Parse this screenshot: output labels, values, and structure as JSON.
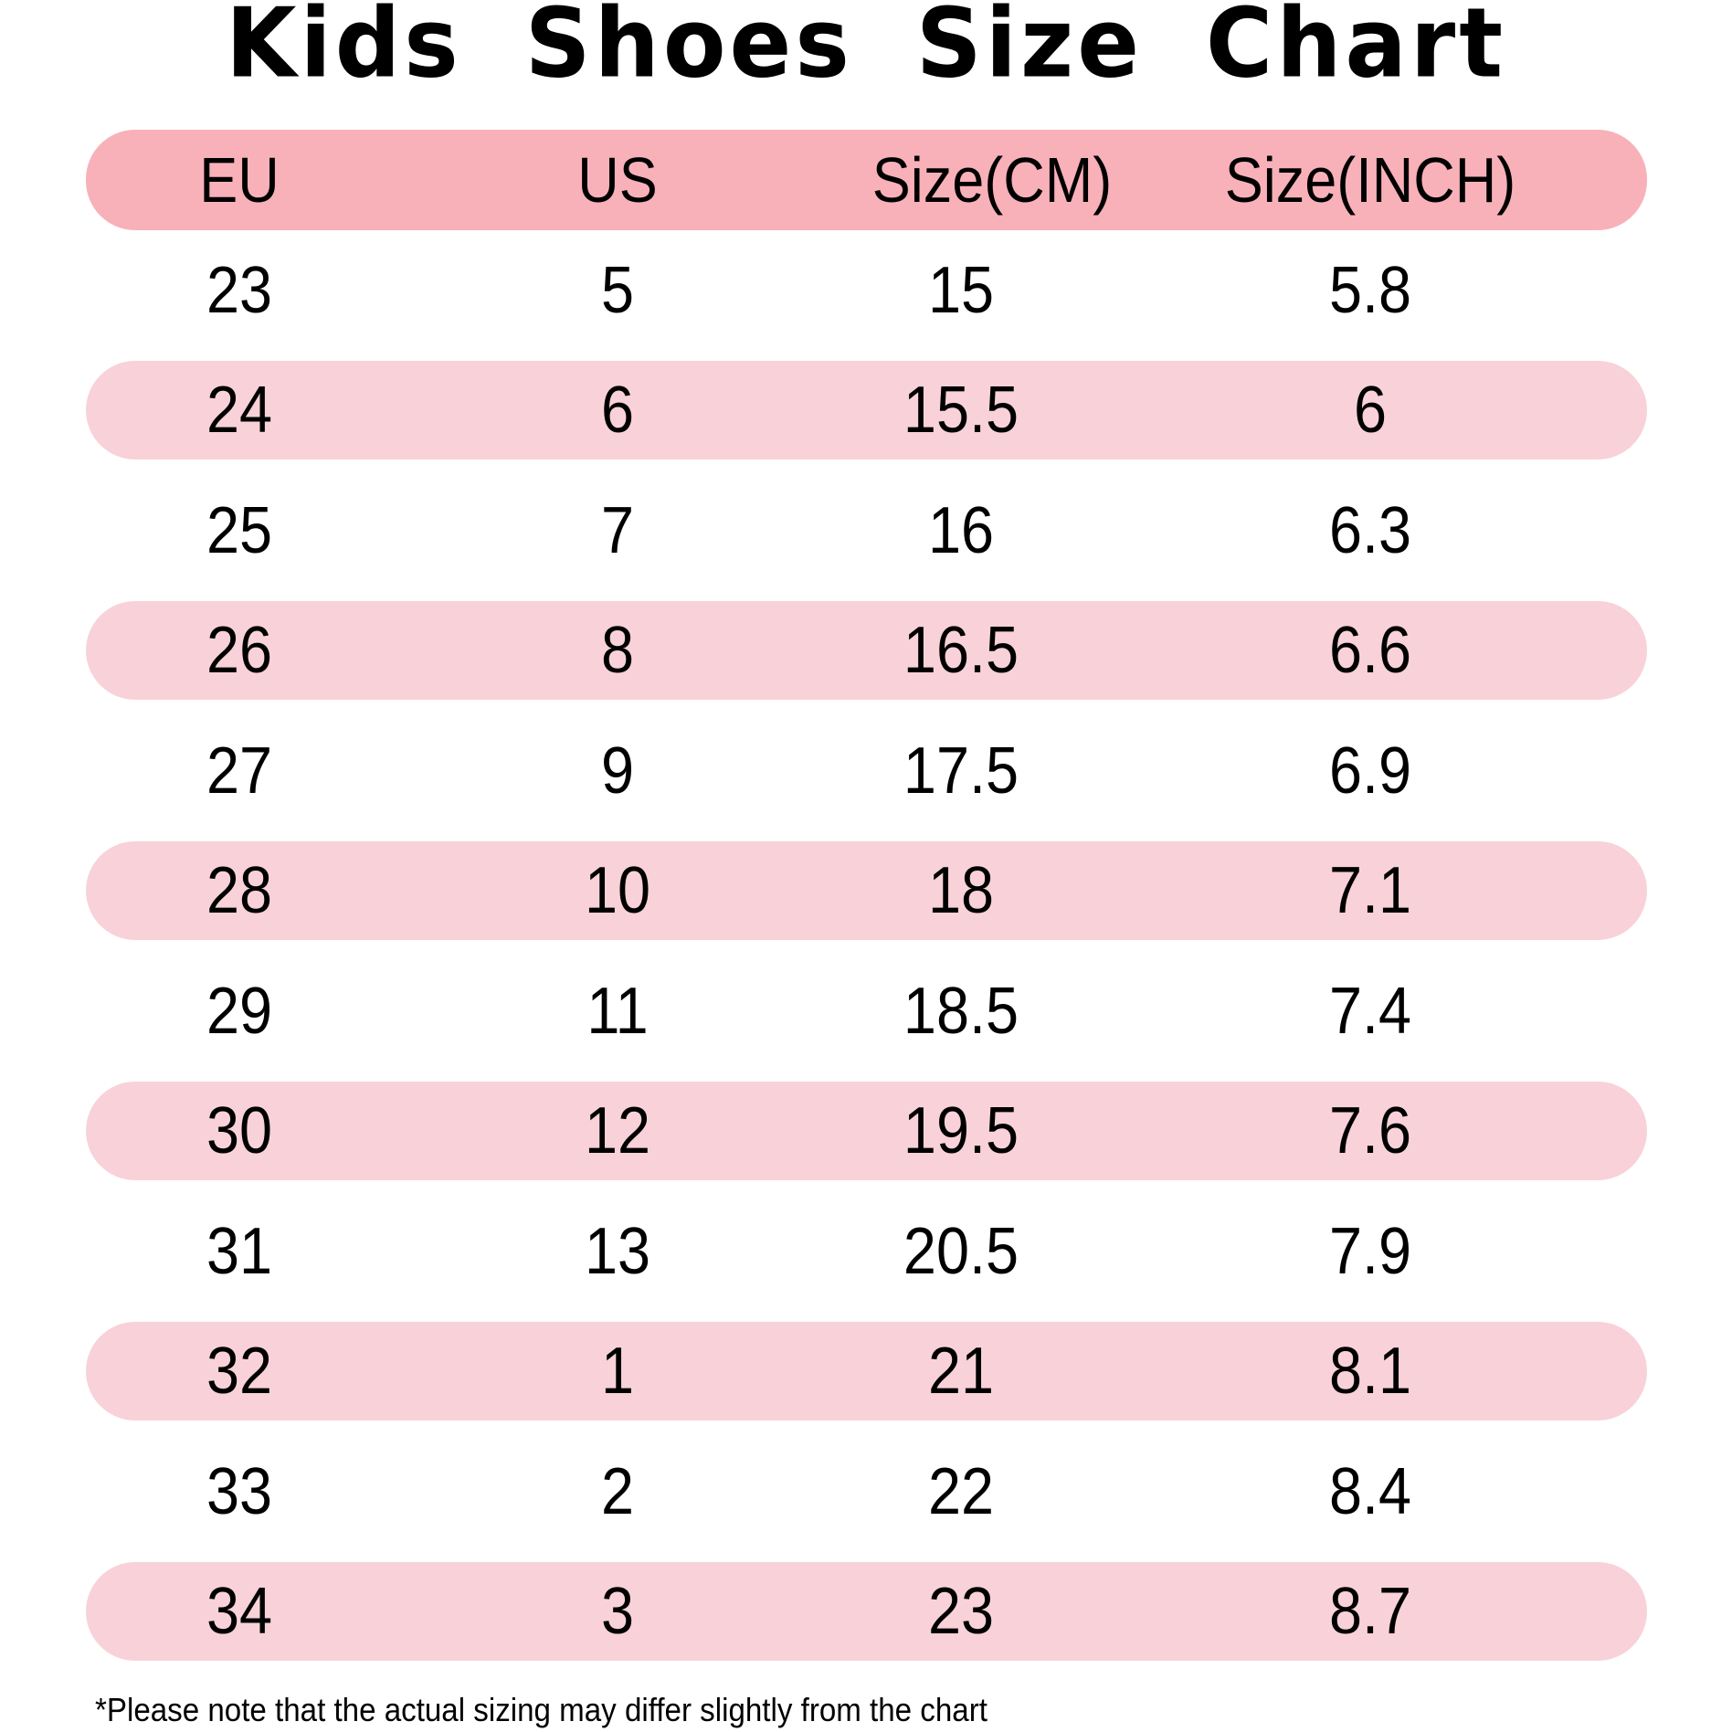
{
  "title": "Kids  Shoes  Size Chart",
  "columns": [
    "EU",
    "US",
    "Size(CM)",
    "Size(INCH)"
  ],
  "rows": [
    [
      "23",
      "5",
      "15",
      "5.8"
    ],
    [
      "24",
      "6",
      "15.5",
      "6"
    ],
    [
      "25",
      "7",
      "16",
      "6.3"
    ],
    [
      "26",
      "8",
      "16.5",
      "6.6"
    ],
    [
      "27",
      "9",
      "17.5",
      "6.9"
    ],
    [
      "28",
      "10",
      "18",
      "7.1"
    ],
    [
      "29",
      "11",
      "18.5",
      "7.4"
    ],
    [
      "30",
      "12",
      "19.5",
      "7.6"
    ],
    [
      "31",
      "13",
      "20.5",
      "7.9"
    ],
    [
      "32",
      "1",
      "21",
      "8.1"
    ],
    [
      "33",
      "2",
      "22",
      "8.4"
    ],
    [
      "34",
      "3",
      "23",
      "8.7"
    ]
  ],
  "footer_note": "*Please note that the actual sizing may differ slightly from the chart",
  "colors": {
    "header_band": "#f8b1b8",
    "row_band": "#f8d2d8",
    "background": "#ffffff",
    "text": "#000000"
  },
  "chart_data": {
    "type": "table",
    "title": "Kids  Shoes  Size Chart",
    "columns": [
      "EU",
      "US",
      "Size(CM)",
      "Size(INCH)"
    ],
    "rows": [
      [
        "23",
        "5",
        "15",
        "5.8"
      ],
      [
        "24",
        "6",
        "15.5",
        "6"
      ],
      [
        "25",
        "7",
        "16",
        "6.3"
      ],
      [
        "26",
        "8",
        "16.5",
        "6.6"
      ],
      [
        "27",
        "9",
        "17.5",
        "6.9"
      ],
      [
        "28",
        "10",
        "18",
        "7.1"
      ],
      [
        "29",
        "11",
        "18.5",
        "7.4"
      ],
      [
        "30",
        "12",
        "19.5",
        "7.6"
      ],
      [
        "31",
        "13",
        "20.5",
        "7.9"
      ],
      [
        "32",
        "1",
        "21",
        "8.1"
      ],
      [
        "33",
        "2",
        "22",
        "8.4"
      ],
      [
        "34",
        "3",
        "23",
        "8.7"
      ]
    ],
    "annotations": [
      "*Please note that the actual sizing may differ slightly from the chart"
    ]
  }
}
